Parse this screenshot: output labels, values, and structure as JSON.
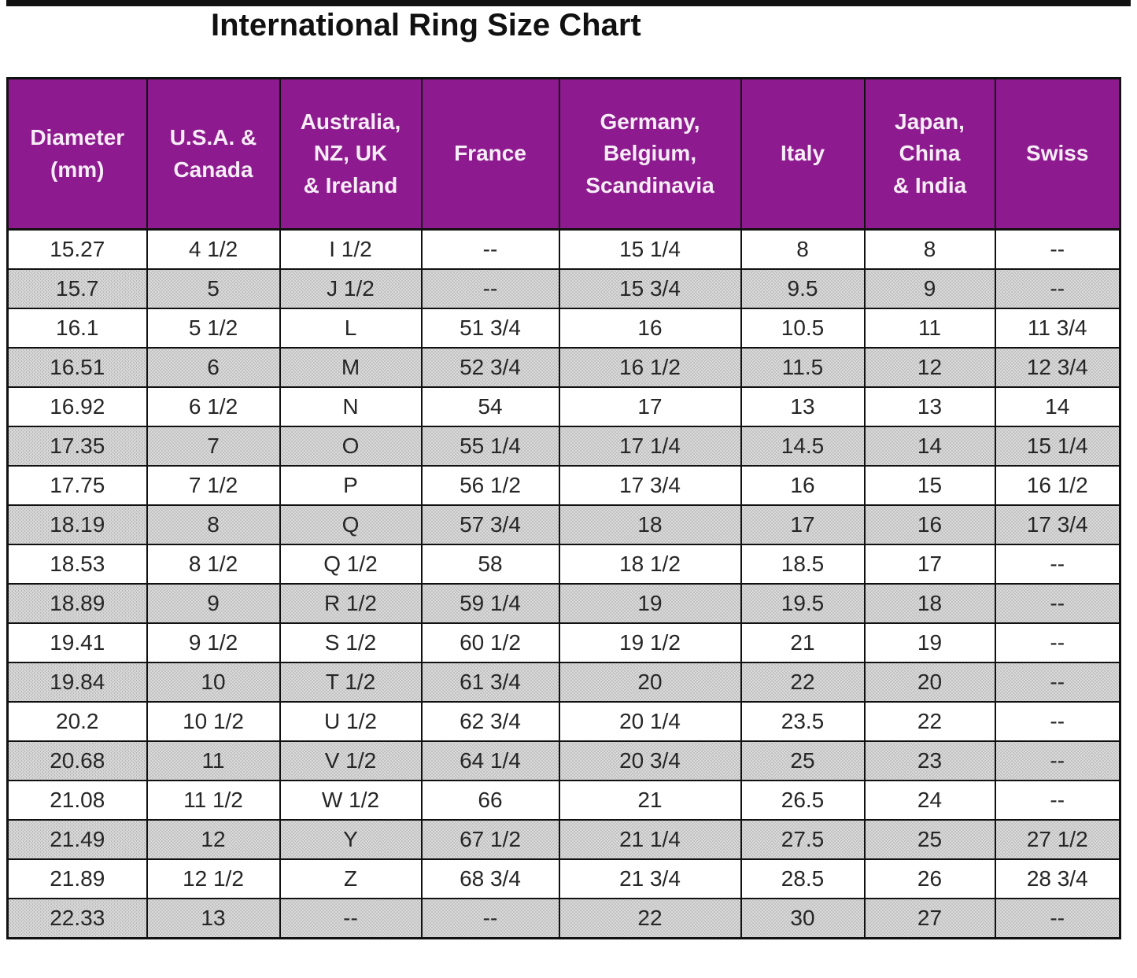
{
  "page": {
    "title": "International Ring Size Chart"
  },
  "colors": {
    "header_bg": "#8d1a8e",
    "header_text": "#f7edf7",
    "alt_row_bg": "#cccccc",
    "border": "#111111",
    "title_text": "#111111",
    "cell_text": "#262626"
  },
  "chart_data": {
    "type": "table",
    "title": "International Ring Size Chart",
    "layout_hints": {
      "header_style": "purple background, white bold text, black grid borders",
      "striping": "body rows alternate white and dotted gray, first row white",
      "grid": true
    },
    "columns": [
      "Diameter\n(mm)",
      "U.S.A. &\nCanada",
      "Australia,\nNZ, UK\n& Ireland",
      "France",
      "Germany,\nBelgium,\nScandinavia",
      "Italy",
      "Japan,\nChina\n& India",
      "Swiss"
    ],
    "rows": [
      [
        "15.27",
        "4 1/2",
        "I 1/2",
        "--",
        "15 1/4",
        "8",
        "8",
        "--"
      ],
      [
        "15.7",
        "5",
        "J 1/2",
        "--",
        "15 3/4",
        "9.5",
        "9",
        "--"
      ],
      [
        "16.1",
        "5 1/2",
        "L",
        "51 3/4",
        "16",
        "10.5",
        "11",
        "11 3/4"
      ],
      [
        "16.51",
        "6",
        "M",
        "52 3/4",
        "16 1/2",
        "11.5",
        "12",
        "12 3/4"
      ],
      [
        "16.92",
        "6 1/2",
        "N",
        "54",
        "17",
        "13",
        "13",
        "14"
      ],
      [
        "17.35",
        "7",
        "O",
        "55 1/4",
        "17 1/4",
        "14.5",
        "14",
        "15 1/4"
      ],
      [
        "17.75",
        "7 1/2",
        "P",
        "56 1/2",
        "17 3/4",
        "16",
        "15",
        "16 1/2"
      ],
      [
        "18.19",
        "8",
        "Q",
        "57 3/4",
        "18",
        "17",
        "16",
        "17 3/4"
      ],
      [
        "18.53",
        "8 1/2",
        "Q 1/2",
        "58",
        "18 1/2",
        "18.5",
        "17",
        "--"
      ],
      [
        "18.89",
        "9",
        "R 1/2",
        "59 1/4",
        "19",
        "19.5",
        "18",
        "--"
      ],
      [
        "19.41",
        "9 1/2",
        "S 1/2",
        "60 1/2",
        "19 1/2",
        "21",
        "19",
        "--"
      ],
      [
        "19.84",
        "10",
        "T 1/2",
        "61 3/4",
        "20",
        "22",
        "20",
        "--"
      ],
      [
        "20.2",
        "10 1/2",
        "U 1/2",
        "62 3/4",
        "20 1/4",
        "23.5",
        "22",
        "--"
      ],
      [
        "20.68",
        "11",
        "V 1/2",
        "64 1/4",
        "20 3/4",
        "25",
        "23",
        "--"
      ],
      [
        "21.08",
        "11 1/2",
        "W 1/2",
        "66",
        "21",
        "26.5",
        "24",
        "--"
      ],
      [
        "21.49",
        "12",
        "Y",
        "67 1/2",
        "21 1/4",
        "27.5",
        "25",
        "27 1/2"
      ],
      [
        "21.89",
        "12 1/2",
        "Z",
        "68 3/4",
        "21 3/4",
        "28.5",
        "26",
        "28 3/4"
      ],
      [
        "22.33",
        "13",
        "--",
        "--",
        "22",
        "30",
        "27",
        "--"
      ]
    ]
  }
}
